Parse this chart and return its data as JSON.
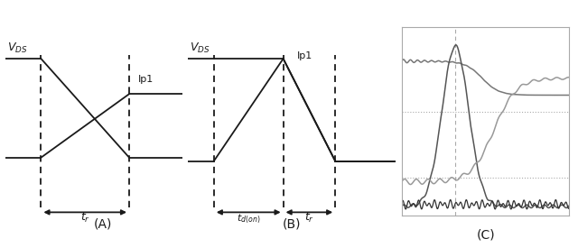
{
  "bg_color": "#ffffff",
  "col": "#1a1a1a",
  "gray1": "#777777",
  "gray2": "#999999",
  "gray_dark": "#555555",
  "gray_bottom": "#333333",
  "panel_labels": [
    "(A)",
    "(B)",
    "(C)"
  ],
  "vds_label": "V_{DS}",
  "ip1_label": "Ip1",
  "tr_label": "t_r",
  "td_label": "t_{d(on)}"
}
